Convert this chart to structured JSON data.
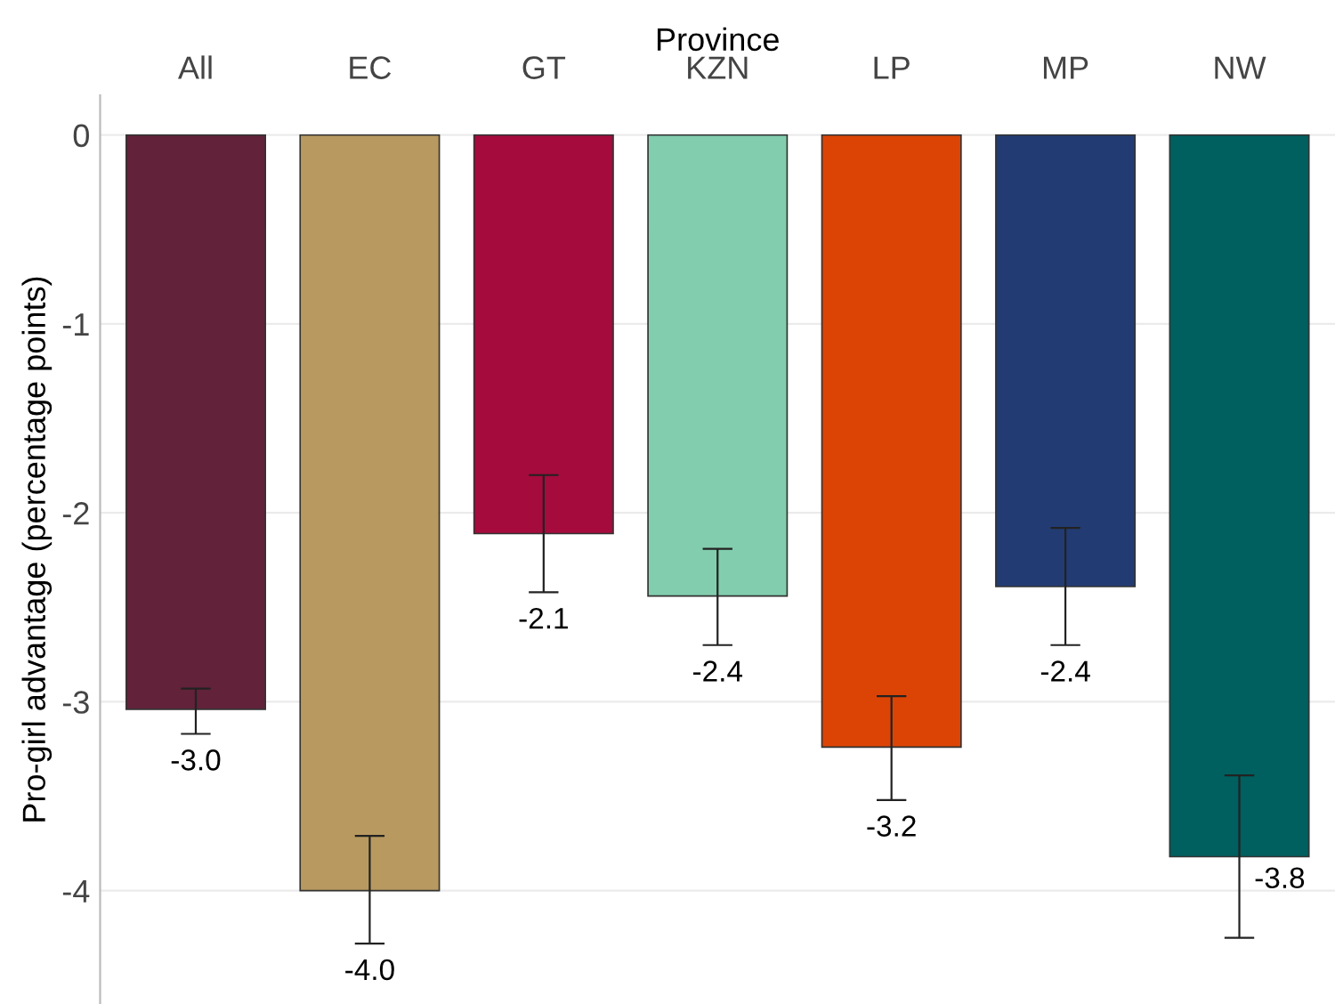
{
  "chart_data": {
    "type": "bar",
    "xlabel": "Province",
    "ylabel": "Pro-girl advantage (percentage points)",
    "categories": [
      "All",
      "EC",
      "GT",
      "KZN",
      "LP",
      "MP",
      "NW"
    ],
    "values": [
      -3.04,
      -4.0,
      -2.11,
      -2.44,
      -3.24,
      -2.39,
      -3.82
    ],
    "colors": [
      "#62223a",
      "#b89a61",
      "#a50b3d",
      "#82cdad",
      "#dc4405",
      "#223c73",
      "#005f5f"
    ],
    "errors": [
      [
        -3.17,
        -2.93
      ],
      [
        -4.28,
        -3.71
      ],
      [
        -2.42,
        -1.8
      ],
      [
        -2.7,
        -2.19
      ],
      [
        -3.52,
        -2.97
      ],
      [
        -2.7,
        -2.08
      ],
      [
        -4.25,
        -3.39
      ]
    ],
    "value_labels": [
      "-3.0",
      "-4.0",
      "-2.1",
      "-2.4",
      "-3.2",
      "-2.4",
      "-3.8"
    ],
    "ylim": [
      -4.6,
      0.21
    ],
    "yticks": [
      0,
      -1,
      -2,
      -3,
      -4
    ],
    "grid": "y",
    "legend": false
  }
}
